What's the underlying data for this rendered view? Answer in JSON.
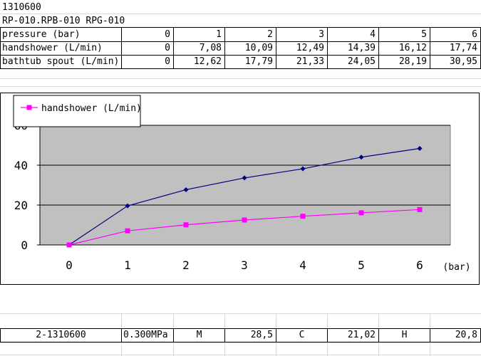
{
  "header": {
    "code": "1310600",
    "models": "RP-010.RPB-010 RPG-010"
  },
  "table": {
    "rows": [
      {
        "label": "pressure  (bar)",
        "values": [
          "0",
          "1",
          "2",
          "3",
          "4",
          "5",
          "6"
        ]
      },
      {
        "label": "handshower (L/min)",
        "values": [
          "0",
          "7,08",
          "10,09",
          "12,49",
          "14,39",
          "16,12",
          "17,74"
        ]
      },
      {
        "label": "bathtub spout (L/min)",
        "values": [
          "0",
          "12,62",
          "17,79",
          "21,33",
          "24,05",
          "28,19",
          "30,95"
        ]
      }
    ]
  },
  "chart_data": {
    "type": "line",
    "x": [
      0,
      1,
      2,
      3,
      4,
      5,
      6
    ],
    "xlabel": "(bar)",
    "ylim": [
      0,
      60
    ],
    "yticks": [
      0,
      20,
      40,
      60
    ],
    "grid": true,
    "legend_position": "top-left",
    "series": [
      {
        "name": "",
        "values": [
          0,
          19.6,
          27.7,
          33.6,
          38.2,
          44.0,
          48.4
        ],
        "color": "#000080",
        "marker": "diamond"
      },
      {
        "name": "handshower (L/min)",
        "values": [
          0,
          7.08,
          10.09,
          12.49,
          14.39,
          16.12,
          17.74
        ],
        "color": "#ff00ff",
        "marker": "square"
      }
    ]
  },
  "bottom_row": [
    "2-1310600",
    "0.300MPa",
    "M",
    "28,5",
    "C",
    "21,02",
    "H",
    "20,8"
  ]
}
